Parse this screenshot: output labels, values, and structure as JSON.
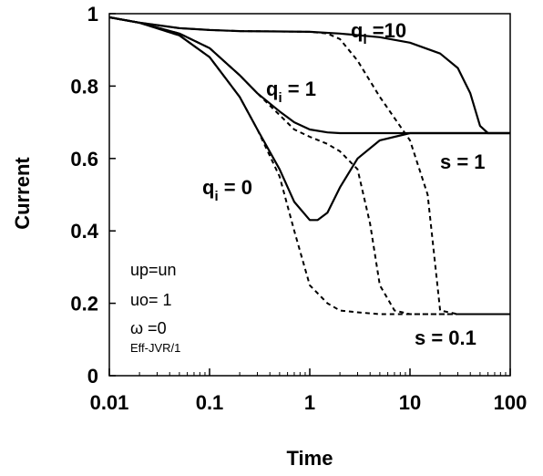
{
  "chart_data": {
    "type": "line",
    "title": "",
    "xlabel": "Time",
    "ylabel": "Current",
    "xscale": "log",
    "xlim": [
      0.01,
      100
    ],
    "ylim": [
      0,
      1
    ],
    "x_ticks": [
      "0.01",
      "0.1",
      "1",
      "10",
      "100"
    ],
    "y_ticks": [
      "0",
      "0.2",
      "0.4",
      "0.6",
      "0.8",
      "1"
    ],
    "grid": false,
    "legend": "none",
    "series": [
      {
        "style": "solid",
        "x": [
          0.01,
          0.02,
          0.05,
          0.1,
          0.2,
          0.5,
          1,
          2,
          5,
          10,
          20,
          30,
          40,
          50,
          60,
          100
        ],
        "y": [
          0.99,
          0.975,
          0.96,
          0.955,
          0.952,
          0.951,
          0.95,
          0.945,
          0.935,
          0.92,
          0.89,
          0.85,
          0.78,
          0.69,
          0.67,
          0.67
        ]
      },
      {
        "style": "solid",
        "x": [
          0.01,
          0.02,
          0.05,
          0.1,
          0.2,
          0.3,
          0.5,
          0.7,
          1,
          1.5,
          2,
          5,
          10,
          100
        ],
        "y": [
          0.99,
          0.975,
          0.945,
          0.905,
          0.83,
          0.78,
          0.73,
          0.7,
          0.68,
          0.672,
          0.67,
          0.67,
          0.67,
          0.67
        ]
      },
      {
        "style": "solid",
        "x": [
          0.01,
          0.02,
          0.05,
          0.1,
          0.2,
          0.3,
          0.5,
          0.7,
          1,
          1.2,
          1.5,
          2,
          3,
          5,
          10,
          20,
          100
        ],
        "y": [
          0.99,
          0.975,
          0.94,
          0.88,
          0.77,
          0.68,
          0.57,
          0.48,
          0.43,
          0.43,
          0.45,
          0.52,
          0.6,
          0.65,
          0.67,
          0.67,
          0.67
        ]
      },
      {
        "style": "dashed",
        "x": [
          0.01,
          0.02,
          0.05,
          0.1,
          0.2,
          0.5,
          1,
          1.5,
          2,
          3,
          5,
          10,
          15,
          20,
          30,
          100
        ],
        "y": [
          0.99,
          0.975,
          0.96,
          0.955,
          0.952,
          0.951,
          0.95,
          0.945,
          0.93,
          0.87,
          0.77,
          0.65,
          0.5,
          0.18,
          0.17,
          0.17
        ]
      },
      {
        "style": "dashed",
        "x": [
          0.01,
          0.02,
          0.05,
          0.1,
          0.2,
          0.3,
          0.5,
          0.7,
          1,
          1.5,
          2,
          3,
          4,
          5,
          7,
          10,
          100
        ],
        "y": [
          0.99,
          0.975,
          0.945,
          0.905,
          0.83,
          0.78,
          0.72,
          0.68,
          0.66,
          0.64,
          0.62,
          0.57,
          0.42,
          0.25,
          0.18,
          0.17,
          0.17
        ]
      },
      {
        "style": "dashed",
        "x": [
          0.01,
          0.02,
          0.05,
          0.1,
          0.2,
          0.3,
          0.5,
          0.7,
          1,
          1.5,
          2,
          3,
          5,
          10,
          100
        ],
        "y": [
          0.99,
          0.975,
          0.94,
          0.88,
          0.77,
          0.68,
          0.55,
          0.4,
          0.25,
          0.2,
          0.18,
          0.175,
          0.17,
          0.17,
          0.17
        ]
      }
    ],
    "annotations": {
      "q10": {
        "base": "q",
        "sub": "i",
        "rest": " =10"
      },
      "q1": {
        "base": "q",
        "sub": "i",
        "rest": " = 1"
      },
      "q0": {
        "base": "q",
        "sub": "i",
        "rest": " = 0"
      },
      "s1": "s = 1",
      "s01": "s = 0.1",
      "up_un": "up=un",
      "uo": "uo= 1",
      "omega": "ω =0",
      "eff": "Eff-JVR/1"
    }
  }
}
